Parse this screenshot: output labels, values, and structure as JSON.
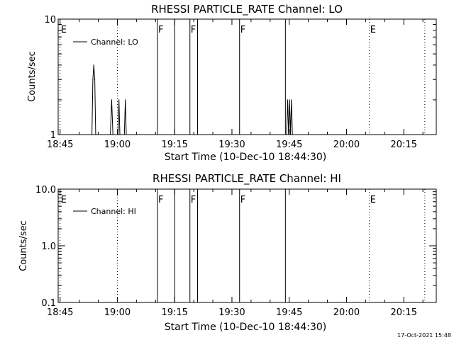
{
  "footer": {
    "timestamp": "17-Oct-2021 15:48"
  },
  "chart_data": [
    {
      "type": "line",
      "title": "RHESSI PARTICLE_RATE Channel: LO",
      "xlabel": "Start Time (10-Dec-10 18:44:30)",
      "ylabel": "Counts/sec",
      "y_scale": "log",
      "ylim": [
        1,
        10
      ],
      "y_ticks": [
        1,
        10
      ],
      "y_tick_labels": [
        "1",
        "10"
      ],
      "xlim": [
        "18:44:30",
        "20:23:30"
      ],
      "x_tick_labels": [
        "18:45",
        "19:00",
        "19:15",
        "19:30",
        "19:45",
        "20:00",
        "20:15"
      ],
      "legend": {
        "location": "top-left",
        "entries": [
          "Channel: LO"
        ]
      },
      "event_markers": [
        {
          "time": "18:45:00",
          "label": "E",
          "style": "dotted"
        },
        {
          "time": "19:00:00",
          "label": "",
          "style": "dotted"
        },
        {
          "time": "19:10:30",
          "label": "F",
          "style": "solid"
        },
        {
          "time": "19:15:00",
          "label": "",
          "style": "solid"
        },
        {
          "time": "19:19:00",
          "label": "F",
          "style": "solid"
        },
        {
          "time": "19:21:00",
          "label": "",
          "style": "solid"
        },
        {
          "time": "19:32:00",
          "label": "F",
          "style": "solid"
        },
        {
          "time": "19:44:00",
          "label": "",
          "style": "solid"
        },
        {
          "time": "20:06:00",
          "label": "E",
          "style": "dotted"
        },
        {
          "time": "20:20:30",
          "label": "",
          "style": "dotted"
        }
      ],
      "series": [
        {
          "name": "Channel: LO",
          "x": [
            "18:53:20",
            "18:53:35",
            "18:53:50",
            "18:54:05",
            "18:54:20",
            "18:54:35",
            "18:54:50",
            "18:58:10",
            "18:58:30",
            "18:58:50",
            "19:00:10",
            "19:00:25",
            "19:00:40",
            "19:01:50",
            "19:02:05",
            "19:02:20",
            "19:44:20",
            "19:44:35",
            "19:44:50",
            "19:45:05",
            "19:45:20",
            "19:45:35",
            "19:45:50"
          ],
          "y": [
            1,
            3,
            4,
            3,
            1,
            1,
            1,
            1,
            2,
            1,
            1,
            2,
            1,
            1,
            2,
            1,
            1,
            2,
            1,
            2,
            1,
            2,
            1
          ]
        }
      ]
    },
    {
      "type": "line",
      "title": "RHESSI PARTICLE_RATE Channel: HI",
      "xlabel": "Start Time (10-Dec-10 18:44:30)",
      "ylabel": "Counts/sec",
      "y_scale": "log",
      "ylim": [
        0.1,
        10.0
      ],
      "y_ticks": [
        0.1,
        1.0,
        10.0
      ],
      "y_tick_labels": [
        "0.1",
        "1.0",
        "10.0"
      ],
      "xlim": [
        "18:44:30",
        "20:23:30"
      ],
      "x_tick_labels": [
        "18:45",
        "19:00",
        "19:15",
        "19:30",
        "19:45",
        "20:00",
        "20:15"
      ],
      "legend": {
        "location": "top-left",
        "entries": [
          "Channel: HI"
        ]
      },
      "event_markers": [
        {
          "time": "18:45:00",
          "label": "E",
          "style": "dotted"
        },
        {
          "time": "19:00:00",
          "label": "",
          "style": "dotted"
        },
        {
          "time": "19:10:30",
          "label": "F",
          "style": "solid"
        },
        {
          "time": "19:15:00",
          "label": "",
          "style": "solid"
        },
        {
          "time": "19:19:00",
          "label": "F",
          "style": "solid"
        },
        {
          "time": "19:21:00",
          "label": "",
          "style": "solid"
        },
        {
          "time": "19:32:00",
          "label": "F",
          "style": "solid"
        },
        {
          "time": "19:44:00",
          "label": "",
          "style": "solid"
        },
        {
          "time": "20:06:00",
          "label": "E",
          "style": "dotted"
        },
        {
          "time": "20:20:30",
          "label": "",
          "style": "dotted"
        }
      ],
      "series": [
        {
          "name": "Channel: HI",
          "x": [],
          "y": []
        }
      ]
    }
  ]
}
